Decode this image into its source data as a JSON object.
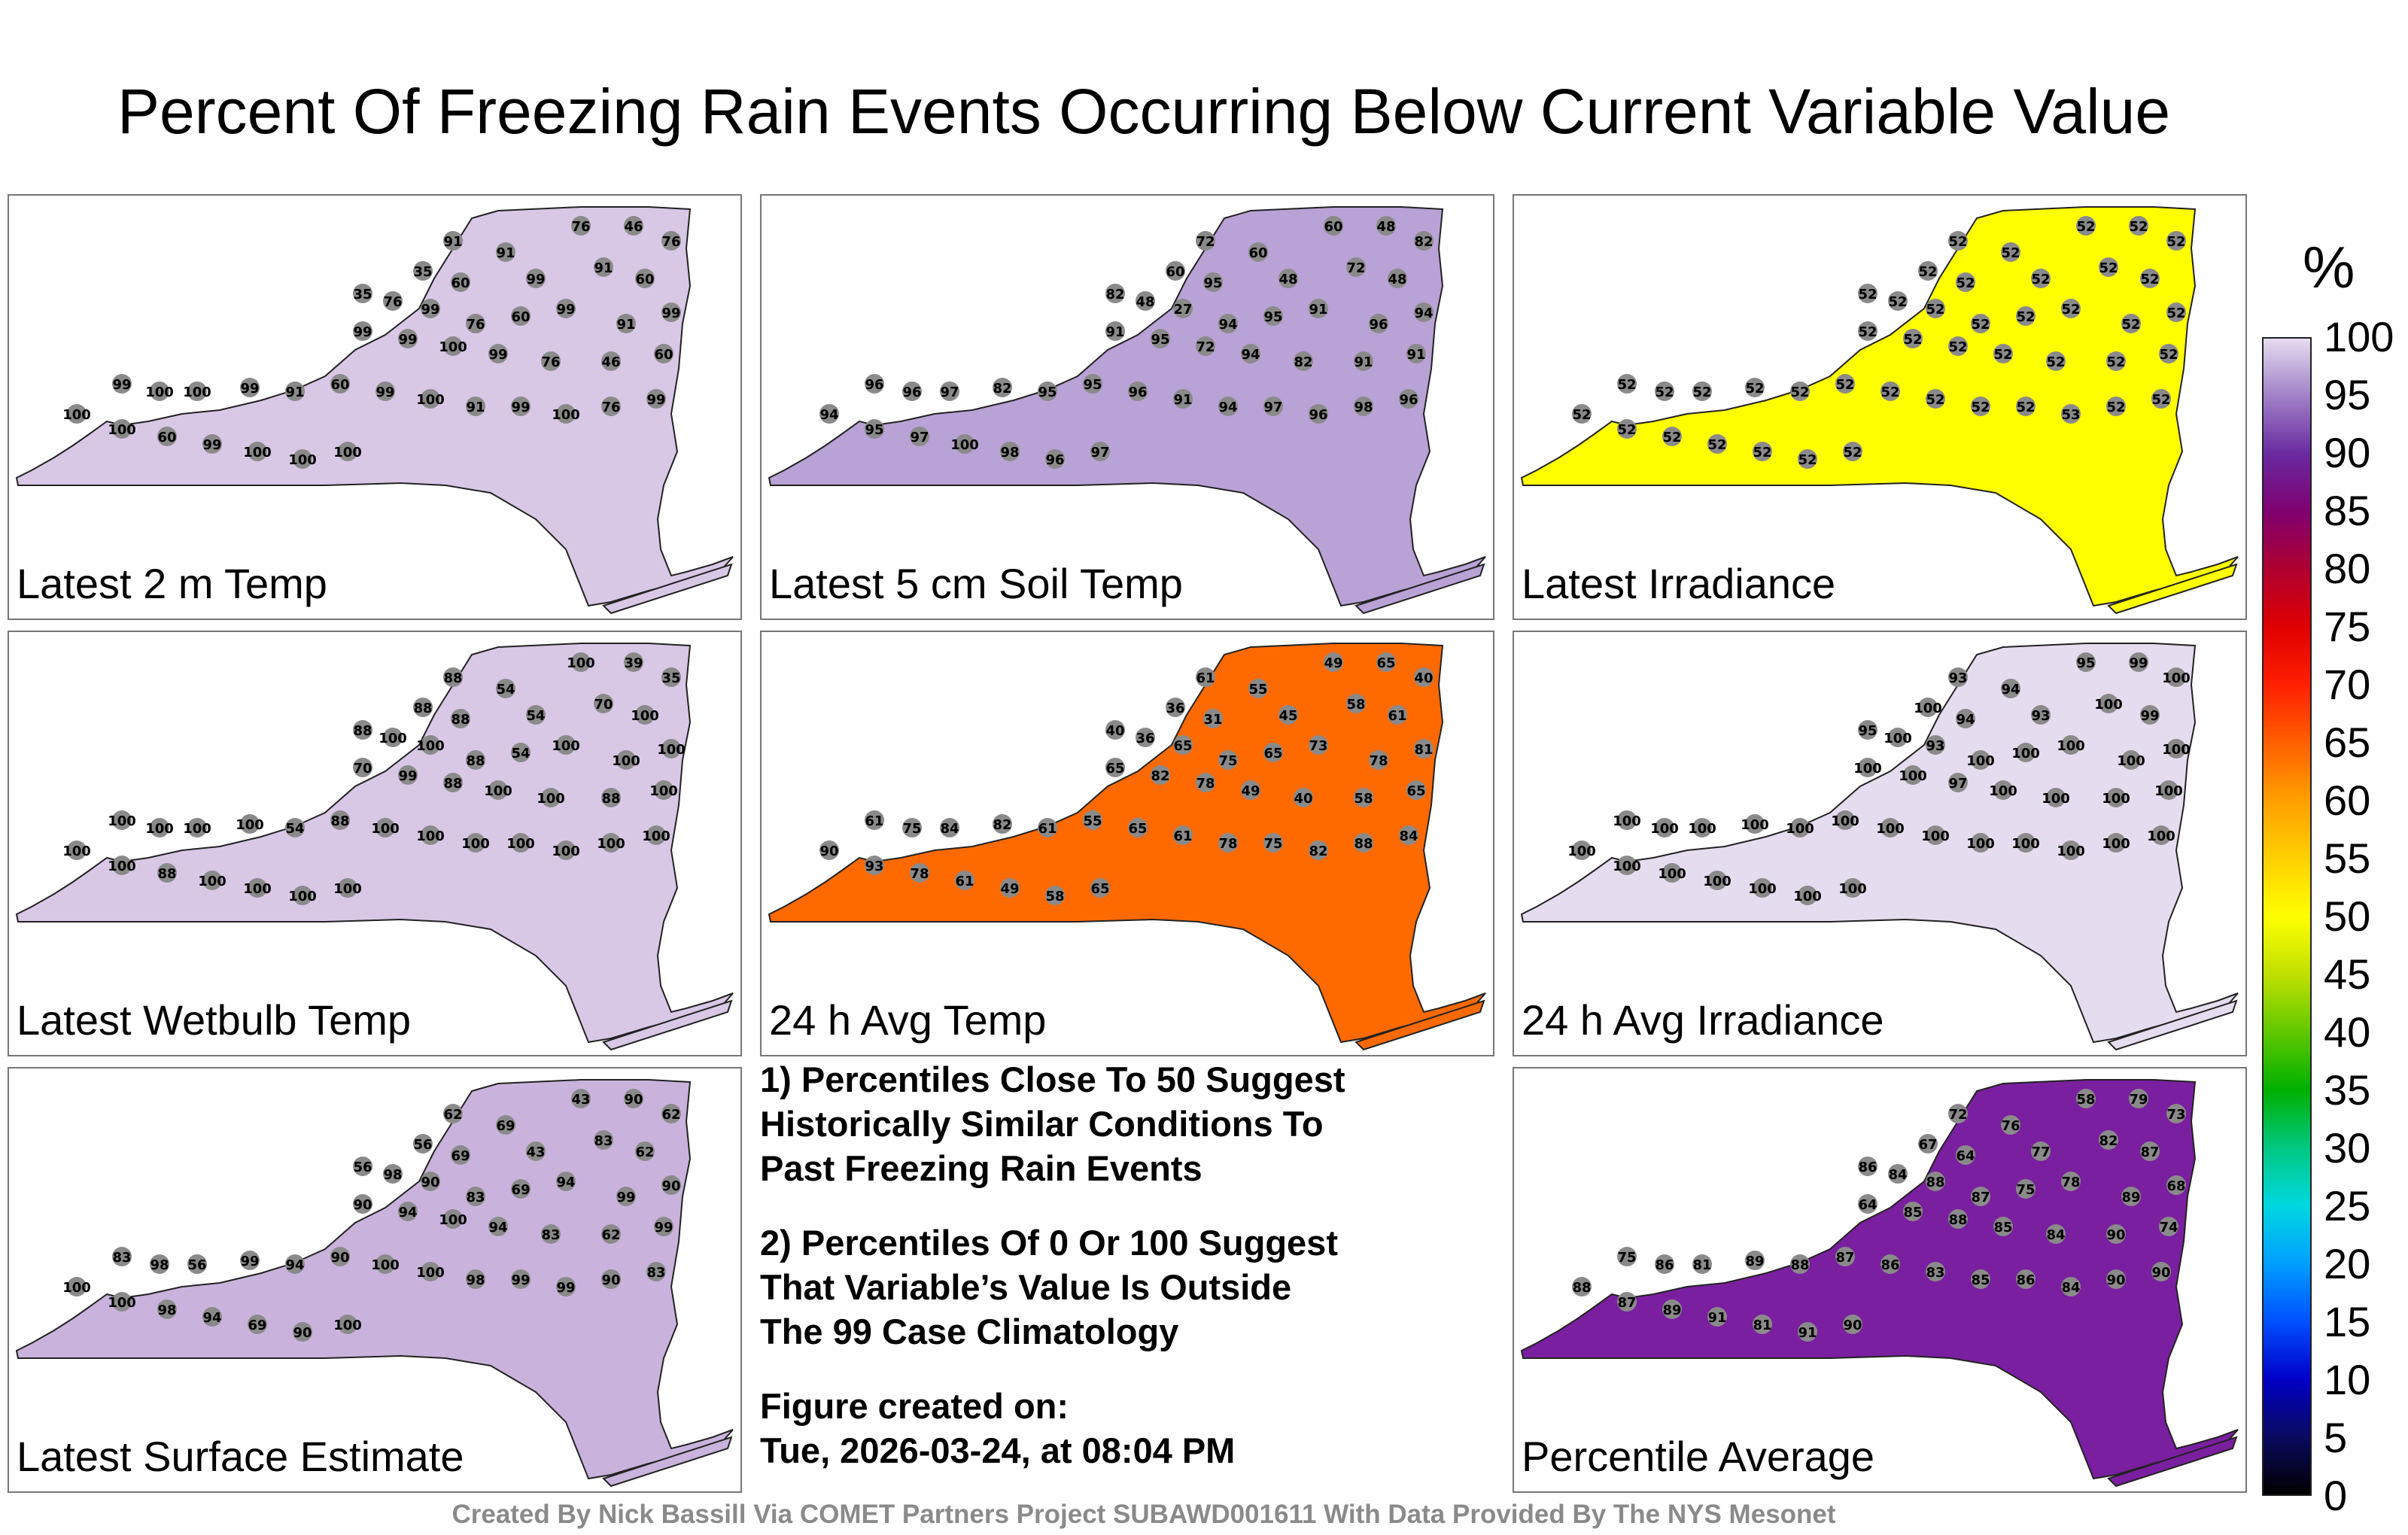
{
  "title": "Percent Of Freezing Rain Events Occurring Below Current Variable Value",
  "panels": [
    {
      "id": "latest-2m-temp",
      "label": "Latest 2 m Temp",
      "fill": "#d8c8e6",
      "stations": [
        "91",
        "91",
        "76",
        "46",
        "76",
        "35",
        "60",
        "99",
        "91",
        "60",
        "35",
        "76",
        "99",
        "76",
        "60",
        "99",
        "91",
        "99",
        "99",
        "99",
        "100",
        "99",
        "76",
        "46",
        "60",
        "99",
        "100",
        "100",
        "99",
        "91",
        "60",
        "99",
        "100",
        "91",
        "99",
        "100",
        "76",
        "99",
        "100",
        "100",
        "60",
        "99",
        "100",
        "100",
        "100"
      ]
    },
    {
      "id": "latest-5cm-soil-temp",
      "label": "Latest 5 cm Soil Temp",
      "fill": "#b9a2d6",
      "stations": [
        "72",
        "60",
        "60",
        "48",
        "82",
        "60",
        "95",
        "48",
        "72",
        "48",
        "82",
        "48",
        "27",
        "94",
        "95",
        "91",
        "96",
        "94",
        "91",
        "95",
        "72",
        "94",
        "82",
        "91",
        "91",
        "96",
        "96",
        "97",
        "82",
        "95",
        "95",
        "96",
        "91",
        "94",
        "97",
        "96",
        "98",
        "96",
        "94",
        "95",
        "97",
        "100",
        "98",
        "96",
        "97"
      ]
    },
    {
      "id": "latest-irradiance",
      "label": "Latest Irradiance",
      "fill": "#ffff00",
      "stations": [
        "52",
        "52",
        "52",
        "52",
        "52",
        "52",
        "52",
        "52",
        "52",
        "52",
        "52",
        "52",
        "52",
        "52",
        "52",
        "52",
        "52",
        "52",
        "52",
        "52",
        "52",
        "52",
        "52",
        "52",
        "52",
        "52",
        "52",
        "52",
        "52",
        "52",
        "52",
        "52",
        "52",
        "52",
        "52",
        "53",
        "52",
        "52",
        "52",
        "52",
        "52",
        "52",
        "52",
        "52",
        "52"
      ]
    },
    {
      "id": "latest-wetbulb-temp",
      "label": "Latest Wetbulb Temp",
      "fill": "#d8c8e6",
      "stations": [
        "88",
        "54",
        "100",
        "39",
        "35",
        "88",
        "88",
        "54",
        "70",
        "100",
        "88",
        "100",
        "100",
        "88",
        "54",
        "100",
        "100",
        "100",
        "70",
        "99",
        "88",
        "100",
        "100",
        "88",
        "100",
        "100",
        "100",
        "100",
        "100",
        "54",
        "88",
        "100",
        "100",
        "100",
        "100",
        "100",
        "100",
        "100",
        "100",
        "100",
        "88",
        "100",
        "100",
        "100",
        "100"
      ]
    },
    {
      "id": "24h-avg-temp",
      "label": "24 h Avg Temp",
      "fill": "#ff6a00",
      "stations": [
        "61",
        "55",
        "49",
        "65",
        "40",
        "36",
        "31",
        "45",
        "58",
        "61",
        "40",
        "36",
        "65",
        "75",
        "65",
        "73",
        "78",
        "81",
        "65",
        "82",
        "78",
        "49",
        "40",
        "58",
        "65",
        "61",
        "75",
        "84",
        "82",
        "61",
        "55",
        "65",
        "61",
        "78",
        "75",
        "82",
        "88",
        "84",
        "90",
        "93",
        "78",
        "61",
        "49",
        "58",
        "65"
      ]
    },
    {
      "id": "24h-avg-irradiance",
      "label": "24 h Avg Irradiance",
      "fill": "#e6dcef",
      "stations": [
        "93",
        "94",
        "95",
        "99",
        "100",
        "100",
        "94",
        "93",
        "100",
        "99",
        "95",
        "100",
        "93",
        "100",
        "100",
        "100",
        "100",
        "100",
        "100",
        "100",
        "97",
        "100",
        "100",
        "100",
        "100",
        "100",
        "100",
        "100",
        "100",
        "100",
        "100",
        "100",
        "100",
        "100",
        "100",
        "100",
        "100",
        "100",
        "100",
        "100",
        "100",
        "100",
        "100",
        "100",
        "100"
      ]
    },
    {
      "id": "latest-surface-estimate",
      "label": "Latest Surface Estimate",
      "fill": "#c9b3dc",
      "stations": [
        "62",
        "69",
        "43",
        "90",
        "62",
        "56",
        "69",
        "43",
        "83",
        "62",
        "56",
        "98",
        "90",
        "83",
        "69",
        "94",
        "99",
        "90",
        "90",
        "94",
        "100",
        "94",
        "83",
        "62",
        "99",
        "83",
        "98",
        "56",
        "99",
        "94",
        "90",
        "100",
        "100",
        "98",
        "99",
        "99",
        "90",
        "83",
        "100",
        "100",
        "98",
        "94",
        "69",
        "90",
        "100"
      ]
    },
    {
      "id": "percentile-average",
      "label": "Percentile Average",
      "fill": "#7a1fa0",
      "stations": [
        "72",
        "76",
        "58",
        "79",
        "73",
        "67",
        "64",
        "77",
        "82",
        "87",
        "86",
        "84",
        "88",
        "87",
        "75",
        "78",
        "89",
        "68",
        "64",
        "85",
        "88",
        "85",
        "84",
        "90",
        "74",
        "75",
        "86",
        "81",
        "89",
        "88",
        "87",
        "86",
        "83",
        "85",
        "86",
        "84",
        "90",
        "90",
        "88",
        "87",
        "89",
        "91",
        "81",
        "91",
        "90"
      ]
    }
  ],
  "notes": [
    "1) Percentiles Close To 50 Suggest\nHistorically Similar Conditions To\nPast Freezing Rain Events",
    "2) Percentiles Of 0 Or 100 Suggest\nThat Variable’s Value Is Outside\nThe 99 Case Climatology",
    "Figure created on:\nTue, 2026-03-24, at 08:04 PM"
  ],
  "colorbar": {
    "unit": "%",
    "ticks": [
      "100",
      "95",
      "90",
      "85",
      "80",
      "75",
      "70",
      "65",
      "60",
      "55",
      "50",
      "45",
      "40",
      "35",
      "30",
      "25",
      "20",
      "15",
      "10",
      "5",
      "0"
    ],
    "colors": [
      "#000000",
      "#0a0a60",
      "#0000c8",
      "#0050ff",
      "#00a0ff",
      "#00d8e0",
      "#00c880",
      "#00b000",
      "#60c800",
      "#c0e000",
      "#ffff00",
      "#ffd000",
      "#ffa000",
      "#ff6000",
      "#ff2000",
      "#e00000",
      "#b00030",
      "#800070",
      "#6a2aa0",
      "#a080c8",
      "#e6dcef"
    ]
  },
  "footer": "Created By Nick Bassill Via COMET Partners Project SUBAWD001611 With Data Provided By The NYS Mesonet"
}
